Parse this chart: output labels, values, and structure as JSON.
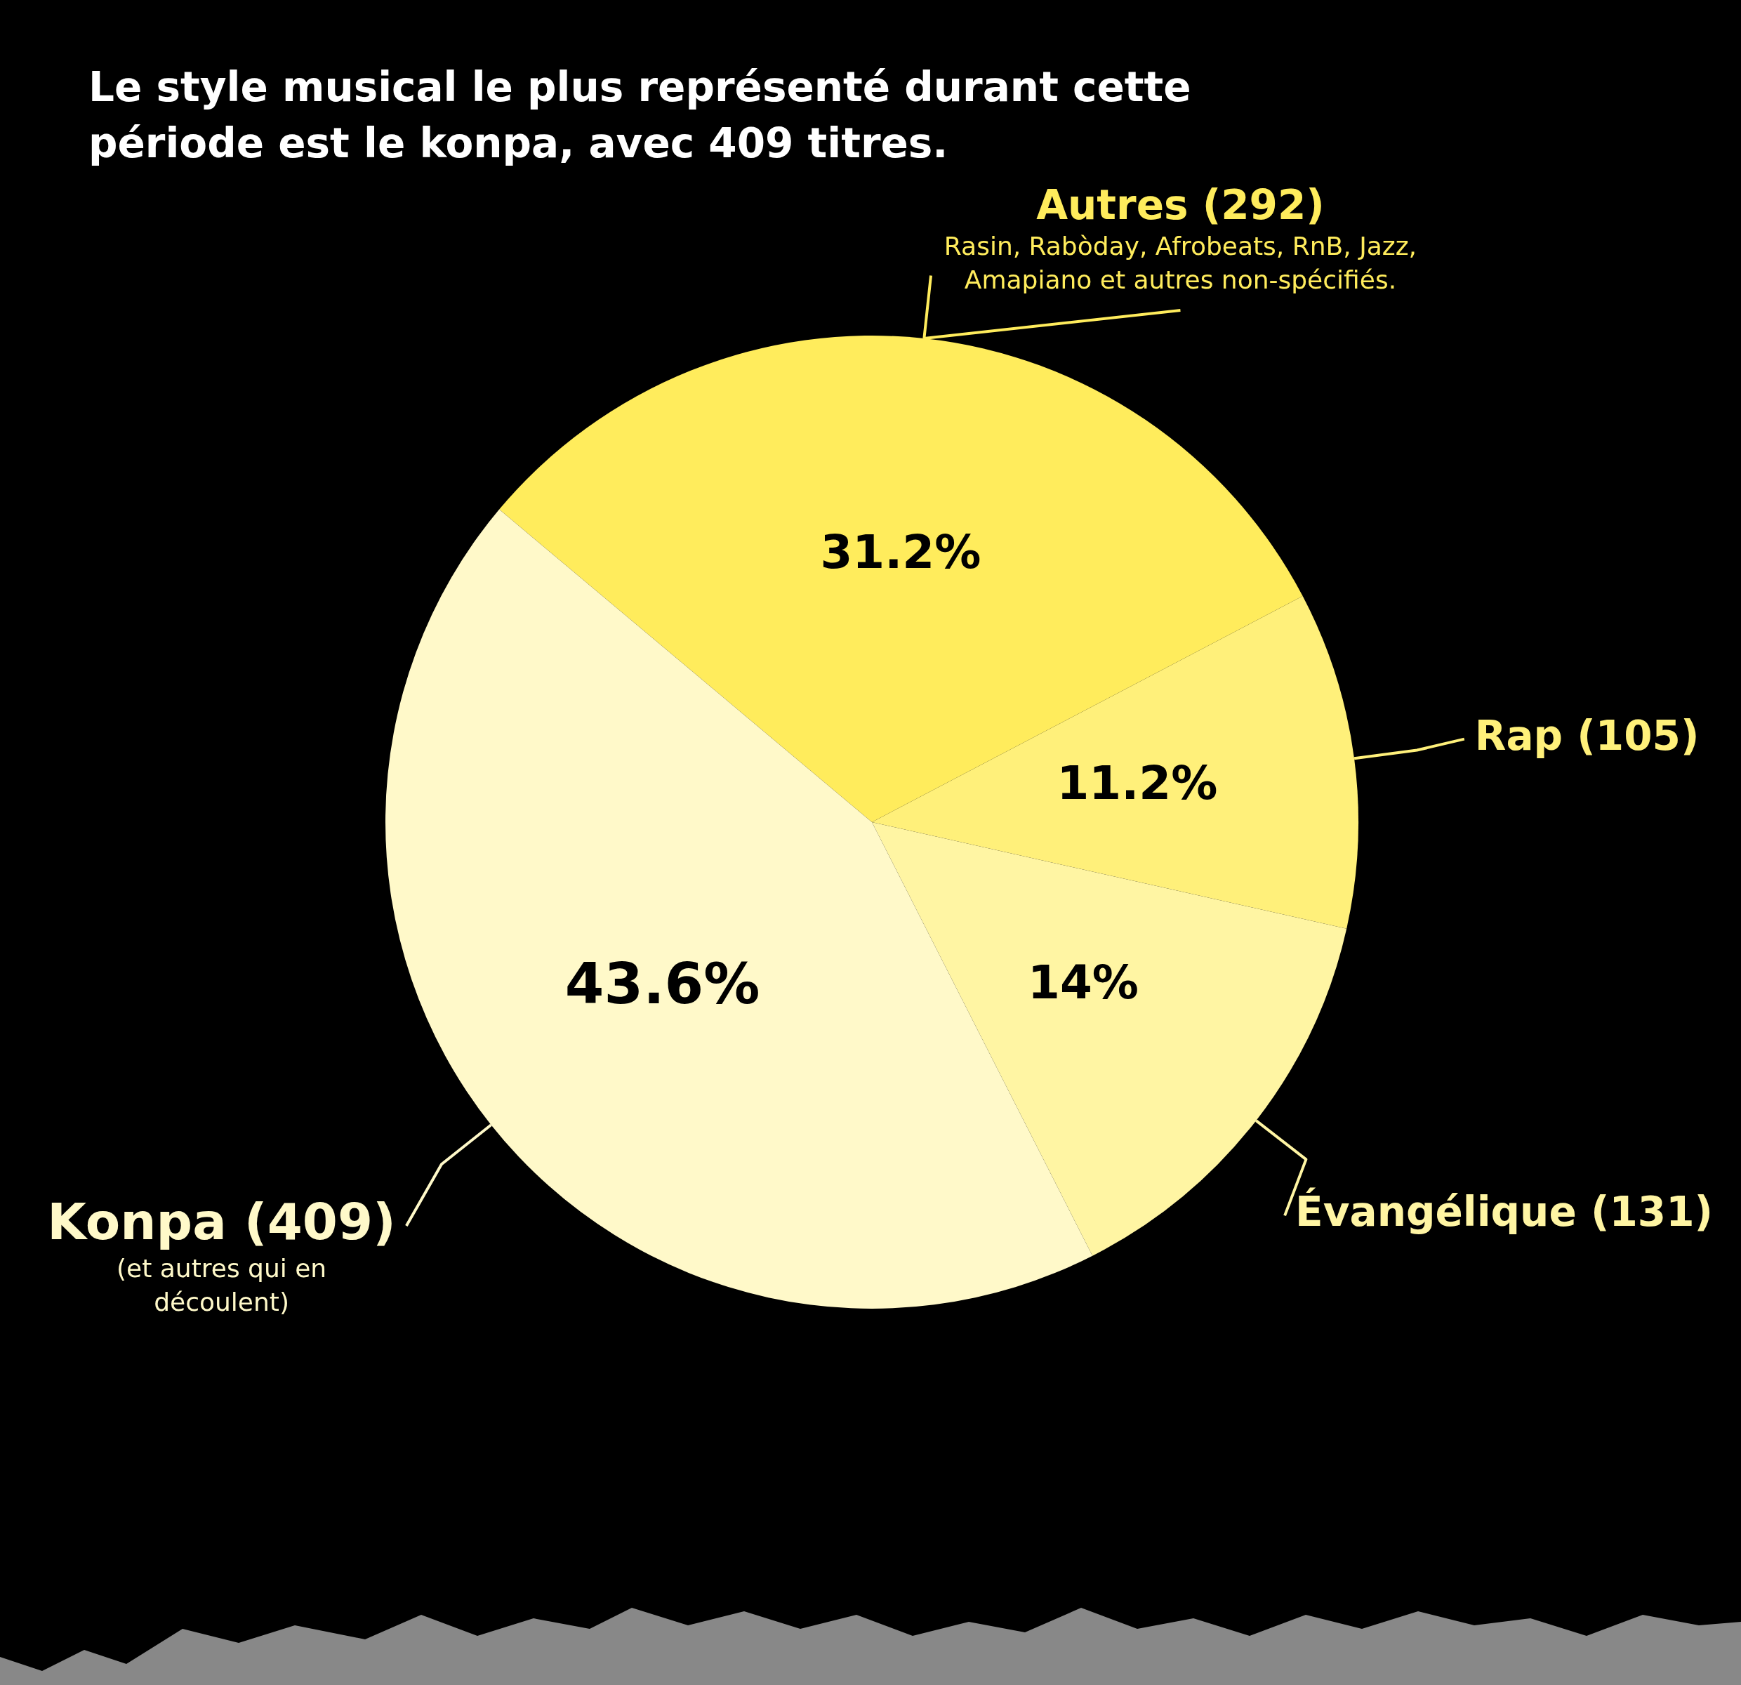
{
  "chart_data": {
    "type": "pie",
    "title": "Le style musical le plus représenté durant cette période est le konpa, avec 409 titres.",
    "categories": [
      "Autres (292)",
      "Rap (105)",
      "Évangélique (131)",
      "Konpa (409)"
    ],
    "values": [
      31.2,
      11.2,
      14,
      43.6
    ],
    "colors": [
      "#ffec5c",
      "#fff07a",
      "#fff5a3",
      "#fff9c9"
    ],
    "value_labels": [
      "31.2%",
      "11.2%",
      "14%",
      "43.6%"
    ],
    "annotations": [
      "Rasin, Rabòday, Afrobeats, RnB, Jazz, Amapiano et autres non-spécifiés.",
      "(et autres qui en découlent)"
    ],
    "legend": false
  }
}
